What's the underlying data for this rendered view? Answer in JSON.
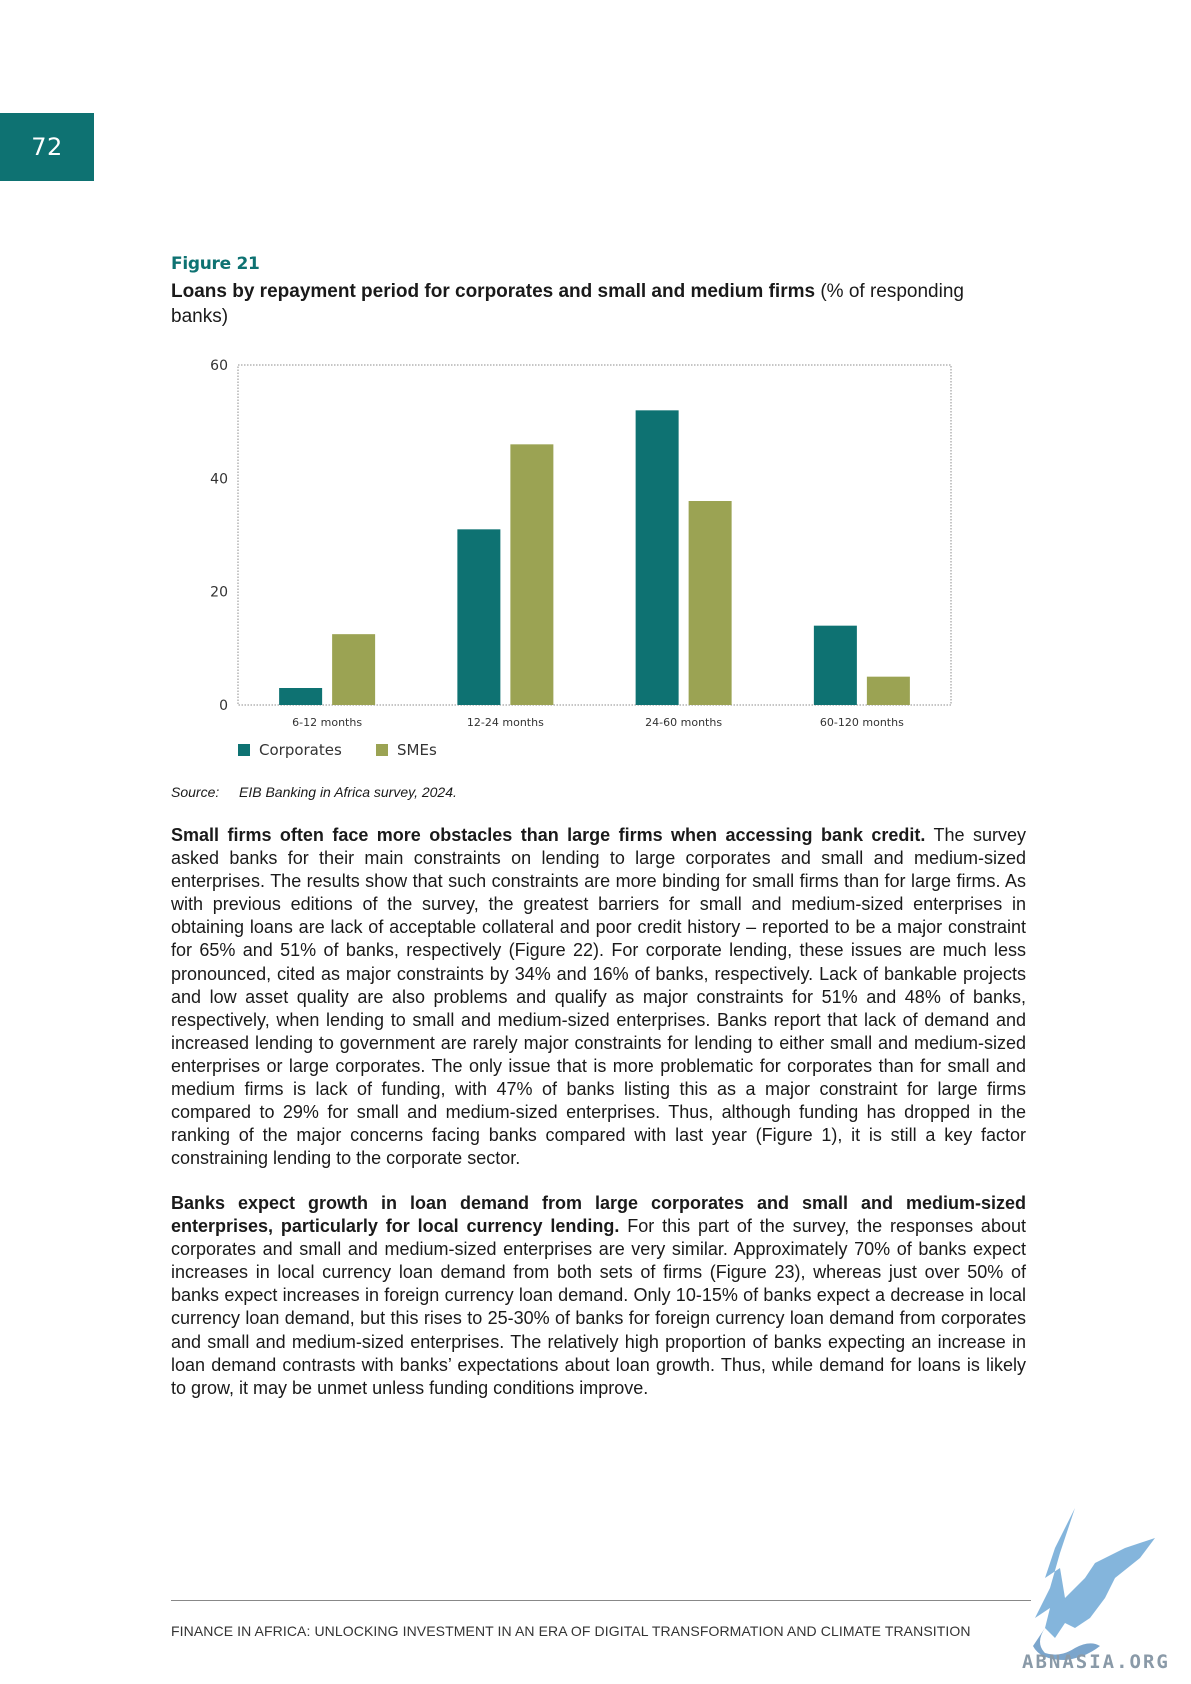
{
  "page_number": "72",
  "figure": {
    "label": "Figure 21",
    "title_bold": "Loans by repayment period for corporates and small and medium firms",
    "title_rest": " (% of responding banks)"
  },
  "chart_data": {
    "type": "bar",
    "categories": [
      "6-12 months",
      "12-24 months",
      "24-60 months",
      "60-120 months"
    ],
    "series": [
      {
        "name": "Corporates",
        "values": [
          3,
          31,
          52,
          14
        ],
        "color": "#0e7272"
      },
      {
        "name": "SMEs",
        "values": [
          12.5,
          46,
          36,
          5
        ],
        "color": "#9ba353"
      }
    ],
    "yticks": [
      0,
      20,
      40,
      60
    ],
    "ylim": [
      0,
      60
    ],
    "legend_position": "bottom-left",
    "grid": false
  },
  "source": {
    "label": "Source:",
    "text": "EIB Banking in Africa survey, 2024."
  },
  "paragraphs": [
    {
      "bold": "Small firms often face more obstacles than large firms when accessing bank credit.",
      "text": " The survey asked banks for their main constraints on lending to large corporates and small and medium-sized enterprises. The results show that such constraints are more binding for small firms than for large firms. As with previous editions of the survey, the greatest barriers for small and medium-sized enterprises in obtaining loans are lack of acceptable collateral and poor credit history – reported to be a major constraint for 65% and 51% of banks, respectively (Figure 22). For corporate lending, these issues are much less pronounced, cited as major constraints by 34% and 16% of banks, respectively. Lack of bankable projects and low asset quality are also problems and qualify as major constraints for 51% and 48% of banks, respectively, when lending to small and medium-sized enterprises. Banks report that lack of demand and increased lending to government are rarely major constraints for lending to either small and medium-sized enterprises or large corporates. The only issue that is more problematic for corporates than for small and medium firms is lack of funding, with 47% of banks listing this as a major constraint for large firms compared to 29% for small and medium-sized enterprises. Thus, although funding has dropped in the ranking of the major concerns facing banks compared with last year (Figure 1), it is still a key factor constraining lending to the corporate sector."
    },
    {
      "bold": "Banks expect growth in loan demand from large corporates and small and medium-sized enterprises, particularly for local currency lending.",
      "text": " For this part of the survey, the responses about corporates and small and medium-sized enterprises are very similar. Approximately 70% of banks expect increases in local currency loan demand from both sets of firms (Figure 23), whereas just over 50% of banks expect increases in foreign currency loan demand. Only 10-15% of banks expect a decrease in local currency loan demand, but this rises to 25-30% of banks for foreign currency loan demand from corporates and small and medium-sized enterprises. The relatively high proportion of banks expecting an increase in loan demand contrasts with banks’ expectations about loan growth. Thus, while demand for loans is likely to grow, it may be unmet unless funding conditions improve."
    }
  ],
  "footer": "FINANCE IN AFRICA: UNLOCKING INVESTMENT IN AN ERA OF DIGITAL TRANSFORMATION AND CLIMATE TRANSITION",
  "watermark": "ABNASIA.ORG"
}
